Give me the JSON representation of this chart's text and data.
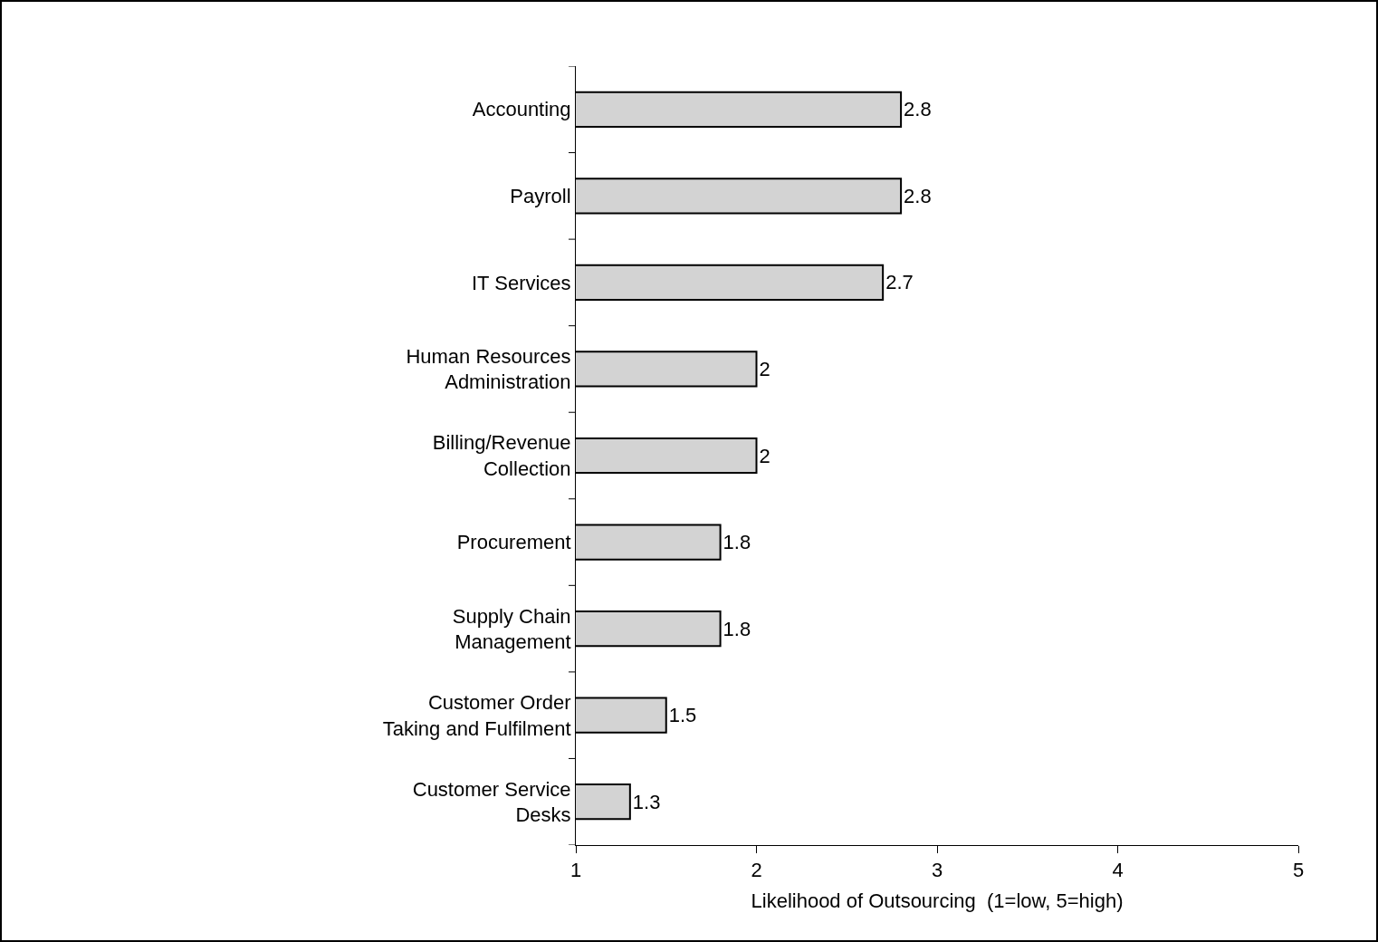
{
  "chart_data": {
    "type": "bar",
    "orientation": "horizontal",
    "xlabel": "Likelihood of Outsourcing  (1=low, 5=high)",
    "categories": [
      "Accounting",
      "Payroll",
      "IT Services",
      "Human Resources\nAdministration",
      "Billing/Revenue\nCollection",
      "Procurement",
      "Supply Chain\nManagement",
      "Customer Order\nTaking and Fulfilment",
      "Customer Service\nDesks"
    ],
    "values": [
      2.8,
      2.8,
      2.7,
      2,
      2,
      1.8,
      1.8,
      1.5,
      1.3
    ],
    "color": "#d3d3d3",
    "xlim": [
      1,
      5
    ],
    "xticks": [
      1,
      2,
      3,
      4,
      5
    ],
    "grid": false,
    "legend": false,
    "data_labels": true
  }
}
